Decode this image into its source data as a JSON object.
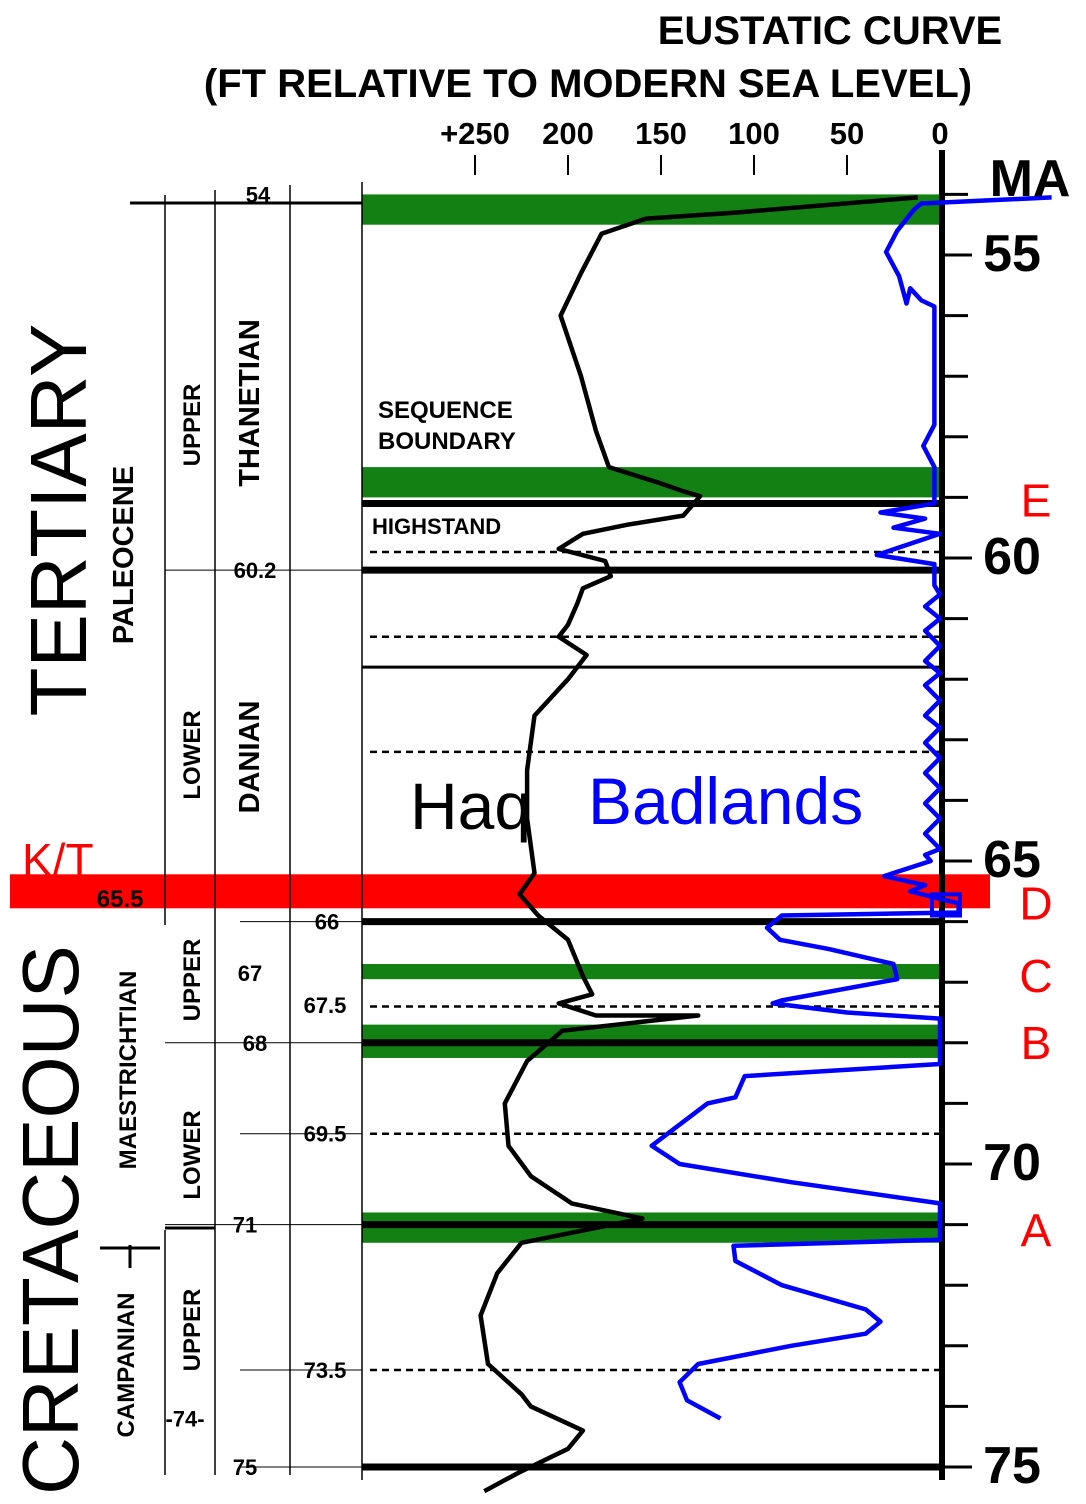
{
  "chart_data": {
    "type": "line",
    "title": "EUSTATIC CURVE",
    "subtitle": "(FT RELATIVE TO MODERN SEA LEVEL)",
    "x_ticks": [
      "+250",
      "200",
      "150",
      "100",
      "50",
      "0"
    ],
    "x_tick_values": [
      250,
      200,
      150,
      100,
      50,
      0
    ],
    "xlim": [
      280,
      0
    ],
    "y_unit": "MA",
    "y_tick_labels": [
      "55",
      "60",
      "65",
      "70",
      "75"
    ],
    "ylim": [
      53.8,
      75.2
    ],
    "series": [
      {
        "name": "Haq",
        "color": "#000000",
        "points": [
          [
            12,
            54.05
          ],
          [
            110,
            54.3
          ],
          [
            158,
            54.4
          ],
          [
            182,
            54.65
          ],
          [
            193,
            55.3
          ],
          [
            204,
            56.0
          ],
          [
            193,
            57.0
          ],
          [
            185,
            57.9
          ],
          [
            178,
            58.5
          ],
          [
            152,
            58.75
          ],
          [
            138,
            58.9
          ],
          [
            129,
            58.98
          ],
          [
            138,
            59.3
          ],
          [
            168,
            59.45
          ],
          [
            192,
            59.6
          ],
          [
            205,
            59.85
          ],
          [
            180,
            60.05
          ],
          [
            177,
            60.3
          ],
          [
            192,
            60.5
          ],
          [
            195,
            60.75
          ],
          [
            200,
            61.1
          ],
          [
            205,
            61.3
          ],
          [
            190,
            61.6
          ],
          [
            200,
            62.0
          ],
          [
            218,
            62.6
          ],
          [
            222,
            63.5
          ],
          [
            222,
            64.3
          ],
          [
            218,
            65.2
          ],
          [
            226,
            65.55
          ],
          [
            216,
            65.9
          ],
          [
            200,
            66.3
          ],
          [
            192,
            66.9
          ],
          [
            187,
            67.2
          ],
          [
            205,
            67.35
          ],
          [
            185,
            67.55
          ],
          [
            130,
            67.55
          ],
          [
            203,
            67.8
          ],
          [
            222,
            68.3
          ],
          [
            234,
            69.0
          ],
          [
            232,
            69.7
          ],
          [
            220,
            70.2
          ],
          [
            198,
            70.65
          ],
          [
            160,
            70.9
          ],
          [
            225,
            71.3
          ],
          [
            238,
            71.8
          ],
          [
            247,
            72.5
          ],
          [
            243,
            73.3
          ],
          [
            225,
            73.8
          ],
          [
            220,
            74.0
          ],
          [
            192,
            74.4
          ],
          [
            200,
            74.7
          ],
          [
            227,
            75.1
          ],
          [
            245,
            75.4
          ]
        ]
      },
      {
        "name": "Badlands",
        "color": "#0000ff",
        "points": [
          [
            -60,
            54.05
          ],
          [
            10,
            54.15
          ],
          [
            14,
            54.25
          ],
          [
            23,
            54.6
          ],
          [
            29,
            54.95
          ],
          [
            22,
            55.35
          ],
          [
            18,
            55.8
          ],
          [
            16,
            55.55
          ],
          [
            10,
            55.75
          ],
          [
            3,
            55.85
          ],
          [
            3,
            56.2
          ],
          [
            3,
            57.0
          ],
          [
            3,
            57.8
          ],
          [
            9,
            58.15
          ],
          [
            3,
            58.5
          ],
          [
            3,
            58.9
          ],
          [
            3,
            59.1
          ],
          [
            32,
            59.25
          ],
          [
            8,
            59.35
          ],
          [
            25,
            59.5
          ],
          [
            0,
            59.6
          ],
          [
            34,
            59.95
          ],
          [
            3,
            60.1
          ],
          [
            3,
            60.45
          ],
          [
            0,
            60.6
          ],
          [
            8,
            60.8
          ],
          [
            0,
            61.0
          ],
          [
            8,
            61.2
          ],
          [
            0,
            61.45
          ],
          [
            8,
            61.7
          ],
          [
            0,
            61.9
          ],
          [
            8,
            62.1
          ],
          [
            0,
            62.35
          ],
          [
            8,
            62.6
          ],
          [
            0,
            62.8
          ],
          [
            8,
            63.05
          ],
          [
            0,
            63.3
          ],
          [
            8,
            63.55
          ],
          [
            0,
            63.8
          ],
          [
            8,
            64.05
          ],
          [
            0,
            64.3
          ],
          [
            8,
            64.55
          ],
          [
            0,
            64.8
          ],
          [
            8,
            64.9
          ],
          [
            5,
            65.0
          ],
          [
            30,
            65.25
          ],
          [
            8,
            65.4
          ],
          [
            16,
            65.5
          ],
          [
            -10,
            65.7
          ],
          [
            -10,
            65.85
          ],
          [
            85,
            65.9
          ],
          [
            93,
            66.1
          ],
          [
            86,
            66.3
          ],
          [
            60,
            66.45
          ],
          [
            25,
            66.7
          ],
          [
            23,
            66.95
          ],
          [
            85,
            67.3
          ],
          [
            90,
            67.35
          ],
          [
            50,
            67.5
          ],
          [
            0,
            67.6
          ],
          [
            0,
            68.35
          ],
          [
            105,
            68.55
          ],
          [
            110,
            68.9
          ],
          [
            125,
            69.0
          ],
          [
            155,
            69.7
          ],
          [
            140,
            70.0
          ],
          [
            80,
            70.3
          ],
          [
            0,
            70.65
          ],
          [
            0,
            71.25
          ],
          [
            111,
            71.35
          ],
          [
            110,
            71.6
          ],
          [
            85,
            72.0
          ],
          [
            40,
            72.4
          ],
          [
            32,
            72.6
          ],
          [
            40,
            72.8
          ],
          [
            80,
            73.0
          ],
          [
            130,
            73.3
          ],
          [
            140,
            73.6
          ],
          [
            136,
            73.9
          ],
          [
            118,
            74.2
          ]
        ]
      }
    ],
    "sea_level_markers": [
      {
        "label": "E",
        "ma": 59.05
      },
      {
        "label": "D",
        "ma": 65.7
      },
      {
        "label": "C",
        "ma": 66.9
      },
      {
        "label": "B",
        "ma": 68.0
      },
      {
        "label": "A",
        "ma": 71.1
      }
    ],
    "kt_boundary": {
      "label": "K/T",
      "age_label": "65.5",
      "ma": 65.5,
      "color": "#ff0000"
    },
    "green_bands": [
      [
        54.0,
        54.5
      ],
      [
        58.5,
        59.0
      ],
      [
        66.7,
        66.95
      ],
      [
        67.7,
        68.25
      ],
      [
        70.8,
        71.3
      ]
    ],
    "thick_lines_ma": [
      59.1,
      60.2,
      66.0,
      68.0,
      71.0,
      75.0
    ],
    "thin_lines_ma": [
      61.8
    ],
    "dashed_lines_ma": [
      59.9,
      61.3,
      63.2,
      67.4,
      69.5,
      73.4
    ],
    "column_titles": {
      "sequence_boundary": [
        "SEQUENCE",
        "BOUNDARY"
      ],
      "highstand": "HIGHSTAND"
    },
    "series_labels": {
      "haq": "Haq",
      "badlands": "Badlands"
    },
    "age_labels": [
      "54",
      "60.2",
      "66",
      "67",
      "67.5",
      "68",
      "69.5",
      "71",
      "73.5",
      "-74-",
      "75"
    ],
    "stratigraphy": {
      "eras": [
        "TERTIARY",
        "CRETACEOUS"
      ],
      "epochs": [
        "PALEOCENE"
      ],
      "stages": [
        "THANETIAN",
        "DANIAN",
        "MAESTRICHTIAN",
        "CAMPANIAN"
      ],
      "substages": [
        "UPPER",
        "LOWER",
        "UPPER",
        "LOWER",
        "UPPER"
      ]
    }
  }
}
